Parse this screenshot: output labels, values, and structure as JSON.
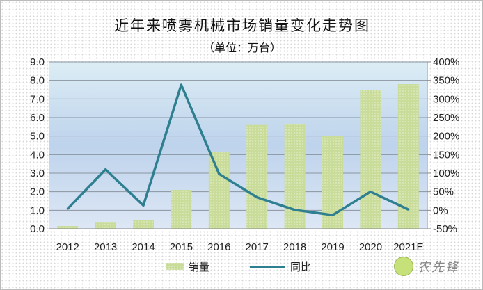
{
  "chart_data": {
    "type": "bar+line",
    "title": "近年来喷雾机械市场销量变化走势图",
    "subtitle": "（单位：万台）",
    "categories": [
      "2012",
      "2013",
      "2014",
      "2015",
      "2016",
      "2017",
      "2018",
      "2019",
      "2020",
      "2021E"
    ],
    "series": [
      {
        "name": "销量",
        "type": "bar",
        "axis": "left",
        "color": "#c9dc9a",
        "values": [
          0.15,
          0.37,
          0.45,
          2.1,
          4.15,
          5.6,
          5.65,
          5.0,
          7.5,
          7.8
        ]
      },
      {
        "name": "同比",
        "type": "line",
        "axis": "right",
        "color": "#2e7f8f",
        "values": [
          4,
          110,
          13,
          338,
          98,
          35,
          1,
          -13,
          50,
          2
        ]
      }
    ],
    "left_axis": {
      "ylim": [
        0,
        9
      ],
      "ticks": [
        "0.0",
        "1.0",
        "2.0",
        "3.0",
        "4.0",
        "5.0",
        "6.0",
        "7.0",
        "8.0",
        "9.0"
      ]
    },
    "right_axis": {
      "ylim": [
        -50,
        400
      ],
      "ticks": [
        "-50%",
        "0%",
        "50%",
        "100%",
        "150%",
        "200%",
        "250%",
        "300%",
        "350%",
        "400%"
      ]
    },
    "grid": true,
    "legend": "bottom"
  },
  "watermark": "农先锋"
}
